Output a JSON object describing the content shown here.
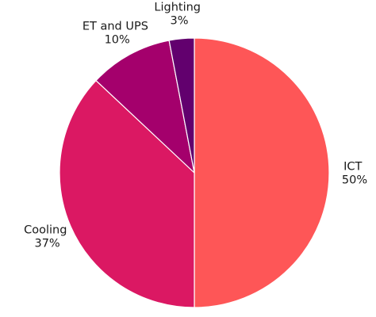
{
  "chart_data": {
    "type": "pie",
    "start_angle_deg": 0,
    "direction": "clockwise",
    "legend": "none",
    "slices": [
      {
        "label": "ICT",
        "value": 50,
        "value_label": "50%",
        "color": "#fe5657"
      },
      {
        "label": "Cooling",
        "value": 37,
        "value_label": "37%",
        "color": "#db1863"
      },
      {
        "label": "ET and UPS",
        "value": 10,
        "value_label": "10%",
        "color": "#a4006c"
      },
      {
        "label": "Lighting",
        "value": 3,
        "value_label": "3%",
        "color": "#62006e"
      }
    ]
  }
}
